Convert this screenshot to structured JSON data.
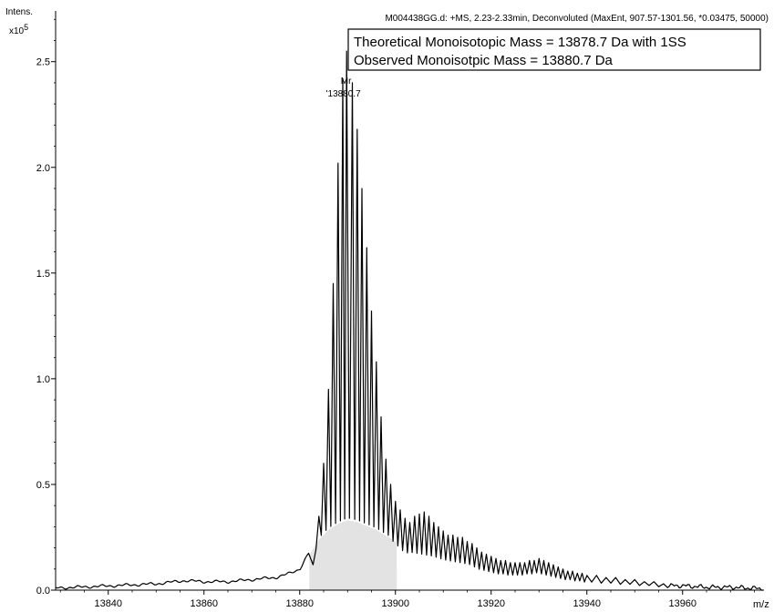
{
  "chart_data": {
    "type": "line",
    "header": "M004438GG.d: +MS, 2.23-2.33min, Deconvoluted (MaxEnt, 907.57-1301.56, *0.03475, 50000)",
    "ylabel": "Intens.",
    "yexponent_base": "x10",
    "yexponent_power": "5",
    "xlabel": "m/z",
    "xlim": [
      13829,
      13977
    ],
    "ylim": [
      0,
      2.74
    ],
    "xticks": [
      13840,
      13860,
      13880,
      13900,
      13920,
      13940,
      13960
    ],
    "xtick_labels": [
      "13840",
      "13860",
      "13880",
      "13900",
      "13920",
      "13940",
      "13960"
    ],
    "yticks": [
      0.0,
      0.5,
      1.0,
      1.5,
      2.0,
      2.5
    ],
    "ytick_labels": [
      "0.0",
      "0.5",
      "1.0",
      "1.5",
      "2.0",
      "2.5"
    ],
    "annotation_box": [
      "Theoretical Monoisotopic Mass = 13878.7 Da with 1SS",
      "Observed Monoisotpic Mass = 13880.7 Da"
    ],
    "peak_label": {
      "name": "Mr",
      "value": "'13880.7",
      "x": 13889.5,
      "y": 2.55
    },
    "shaded_region": {
      "x_from": 13882,
      "x_to": 13900.3,
      "color": "#e3e3e3"
    },
    "envelope": {
      "x": [
        13829,
        13840,
        13850,
        13856,
        13860,
        13865,
        13870,
        13875,
        13878,
        13880,
        13882,
        13884,
        13886,
        13888,
        13890,
        13892,
        13894,
        13896,
        13898,
        13900,
        13902,
        13904,
        13906,
        13908,
        13910,
        13912,
        13914,
        13916,
        13918,
        13920,
        13922,
        13924,
        13926,
        13928,
        13930,
        13932,
        13935,
        13940,
        13945,
        13950,
        13955,
        13960,
        13965,
        13970,
        13977
      ],
      "y": [
        0.01,
        0.02,
        0.03,
        0.045,
        0.04,
        0.04,
        0.05,
        0.06,
        0.08,
        0.1,
        0.18,
        0.26,
        0.31,
        0.34,
        0.36,
        0.35,
        0.33,
        0.31,
        0.28,
        0.25,
        0.23,
        0.22,
        0.21,
        0.2,
        0.18,
        0.17,
        0.16,
        0.15,
        0.13,
        0.12,
        0.12,
        0.11,
        0.11,
        0.12,
        0.12,
        0.11,
        0.08,
        0.06,
        0.05,
        0.04,
        0.03,
        0.03,
        0.02,
        0.02,
        0.01
      ]
    },
    "peak_tops": {
      "x": [
        13882.8,
        13884.0,
        13885.0,
        13886.0,
        13887.0,
        13888.0,
        13889.0,
        13889.8,
        13891.0,
        13892.0,
        13893.0,
        13894.0,
        13895.0,
        13896.0,
        13897.0,
        13898.0,
        13899.0,
        13900.0,
        13901.0,
        13902.0,
        13903.0,
        13904.0,
        13905.0,
        13906.0,
        13907.0,
        13908.0,
        13909.0,
        13910.0,
        13911.0,
        13912.0,
        13913.0,
        13914.0,
        13915.0,
        13916.0,
        13917.0,
        13918.0,
        13919.0,
        13920.0,
        13921.0,
        13922.0,
        13923.0,
        13924.0,
        13925.0,
        13926.0,
        13927.0,
        13928.0,
        13929.0,
        13930.0,
        13931.0,
        13932.0,
        13933.0,
        13934.0,
        13935.0,
        13936.0,
        13937.0,
        13938.0,
        13939.0,
        13940.0,
        13942.0,
        13944.0,
        13946.0,
        13948.0,
        13950.0,
        13952.0,
        13954.0,
        13956.0
      ],
      "y": [
        0.12,
        0.35,
        0.6,
        0.95,
        1.45,
        2.02,
        2.42,
        2.55,
        2.4,
        2.18,
        1.9,
        1.62,
        1.32,
        1.08,
        0.82,
        0.62,
        0.5,
        0.42,
        0.38,
        0.34,
        0.32,
        0.35,
        0.36,
        0.37,
        0.35,
        0.32,
        0.3,
        0.28,
        0.26,
        0.26,
        0.25,
        0.25,
        0.23,
        0.22,
        0.2,
        0.18,
        0.17,
        0.16,
        0.15,
        0.14,
        0.14,
        0.13,
        0.13,
        0.13,
        0.13,
        0.14,
        0.14,
        0.15,
        0.14,
        0.13,
        0.12,
        0.11,
        0.1,
        0.09,
        0.09,
        0.08,
        0.08,
        0.07,
        0.07,
        0.06,
        0.06,
        0.05,
        0.05,
        0.04,
        0.04,
        0.03
      ]
    },
    "grid": false,
    "legend": "none"
  }
}
